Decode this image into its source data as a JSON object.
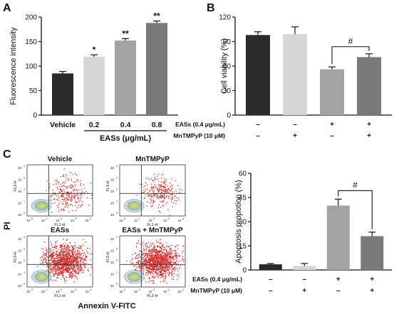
{
  "panels": {
    "A": "A",
    "B": "B",
    "C": "C"
  },
  "chart_data": [
    {
      "id": "A",
      "type": "bar",
      "ylabel": "Fluorescence intensity",
      "xlabel": "EASs (μg/mL)",
      "categories": [
        "Vehicle",
        "0.2",
        "0.4",
        "0.8"
      ],
      "values": [
        85,
        119,
        152,
        188
      ],
      "errors": [
        4,
        4,
        4,
        4
      ],
      "significance": [
        "",
        "*",
        "**",
        "**"
      ],
      "colors": [
        "#2b2b2b",
        "#d6d6d6",
        "#a3a3a3",
        "#7a7a7a"
      ],
      "ylim": [
        0,
        200
      ],
      "yticks": [
        "0",
        "50",
        "100",
        "150",
        "200"
      ]
    },
    {
      "id": "B",
      "type": "bar",
      "ylabel": "Cell viability (%)",
      "values": [
        98,
        99,
        56,
        71
      ],
      "errors": [
        4,
        9,
        3,
        4
      ],
      "colors": [
        "#2b2b2b",
        "#d6d6d6",
        "#a3a3a3",
        "#7a7a7a"
      ],
      "ylim": [
        0,
        120
      ],
      "yticks": [
        "0",
        "30",
        "60",
        "90",
        "120"
      ],
      "bracket": {
        "from": 2,
        "to": 3,
        "label": "#"
      },
      "conditions": [
        {
          "label": "EASs (0.4 μg/mL)",
          "signs": [
            "–",
            "–",
            "+",
            "+"
          ]
        },
        {
          "label": "MnTMPyP (10 μM)",
          "signs": [
            "–",
            "+",
            "–",
            "+"
          ]
        }
      ]
    },
    {
      "id": "C2",
      "type": "bar",
      "ylabel": "Apoptosis propotion (%)",
      "values": [
        3.5,
        2.5,
        40,
        21
      ],
      "errors": [
        0.5,
        1.5,
        4,
        2.5
      ],
      "colors": [
        "#2b2b2b",
        "#d6d6d6",
        "#a3a3a3",
        "#7a7a7a"
      ],
      "ylim": [
        0,
        60
      ],
      "yticks": [
        "0",
        "15",
        "30",
        "45",
        "60"
      ],
      "bracket": {
        "from": 2,
        "to": 3,
        "label": "#"
      },
      "conditions": [
        {
          "label": "EASs (0.4 μg/mL)",
          "signs": [
            "–",
            "–",
            "+",
            "+"
          ]
        },
        {
          "label": "MnTMPyP (10 μM)",
          "signs": [
            "–",
            "+",
            "–",
            "+"
          ]
        }
      ]
    },
    {
      "id": "C1",
      "type": "scatter",
      "xlabel": "Annexin V-FITC",
      "ylabel": "PI",
      "plots": [
        {
          "title": "Vehicle",
          "density": "low"
        },
        {
          "title": "MnTMPyP",
          "density": "low"
        },
        {
          "title": "EASs",
          "density": "high"
        },
        {
          "title": "EASs + MnTMPyP",
          "density": "high"
        }
      ],
      "axis_text": {
        "fl3": "FL3-H",
        "fl1": "FL1-H",
        "p10": "10",
        "e0": "0",
        "e1": "1",
        "e2": "2",
        "e3": "3",
        "e4": "4"
      }
    }
  ]
}
